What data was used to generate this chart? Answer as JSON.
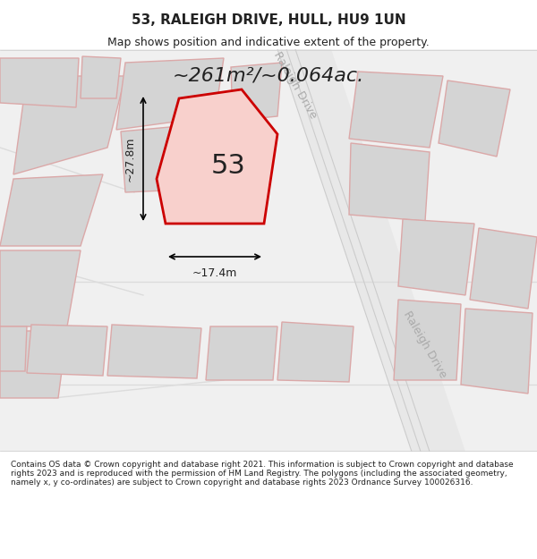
{
  "title_line1": "53, RALEIGH DRIVE, HULL, HU9 1UN",
  "title_line2": "Map shows position and indicative extent of the property.",
  "area_text": "~261m²/~0.064ac.",
  "number_label": "53",
  "dim_width": "~17.4m",
  "dim_height": "~27.8m",
  "road_label_top": "Raleigh Drive",
  "road_label_bottom": "Raleigh Drive",
  "footer_text": "Contains OS data © Crown copyright and database right 2021. This information is subject to Crown copyright and database rights 2023 and is reproduced with the permission of HM Land Registry. The polygons (including the associated geometry, namely x, y co-ordinates) are subject to Crown copyright and database rights 2023 Ordnance Survey 100026316.",
  "bg_color": "#f0f0f0",
  "map_bg": "#f0f0f0",
  "plot_fill": "#f8d0cc",
  "plot_edge": "#cc0000",
  "road_color": "#ffffff",
  "building_fill": "#d8d8d8",
  "building_edge": "#e8a0a0",
  "road_line_color": "#e0e0e0",
  "text_color": "#222222",
  "footer_bg": "#ffffff",
  "header_bg": "#ffffff"
}
